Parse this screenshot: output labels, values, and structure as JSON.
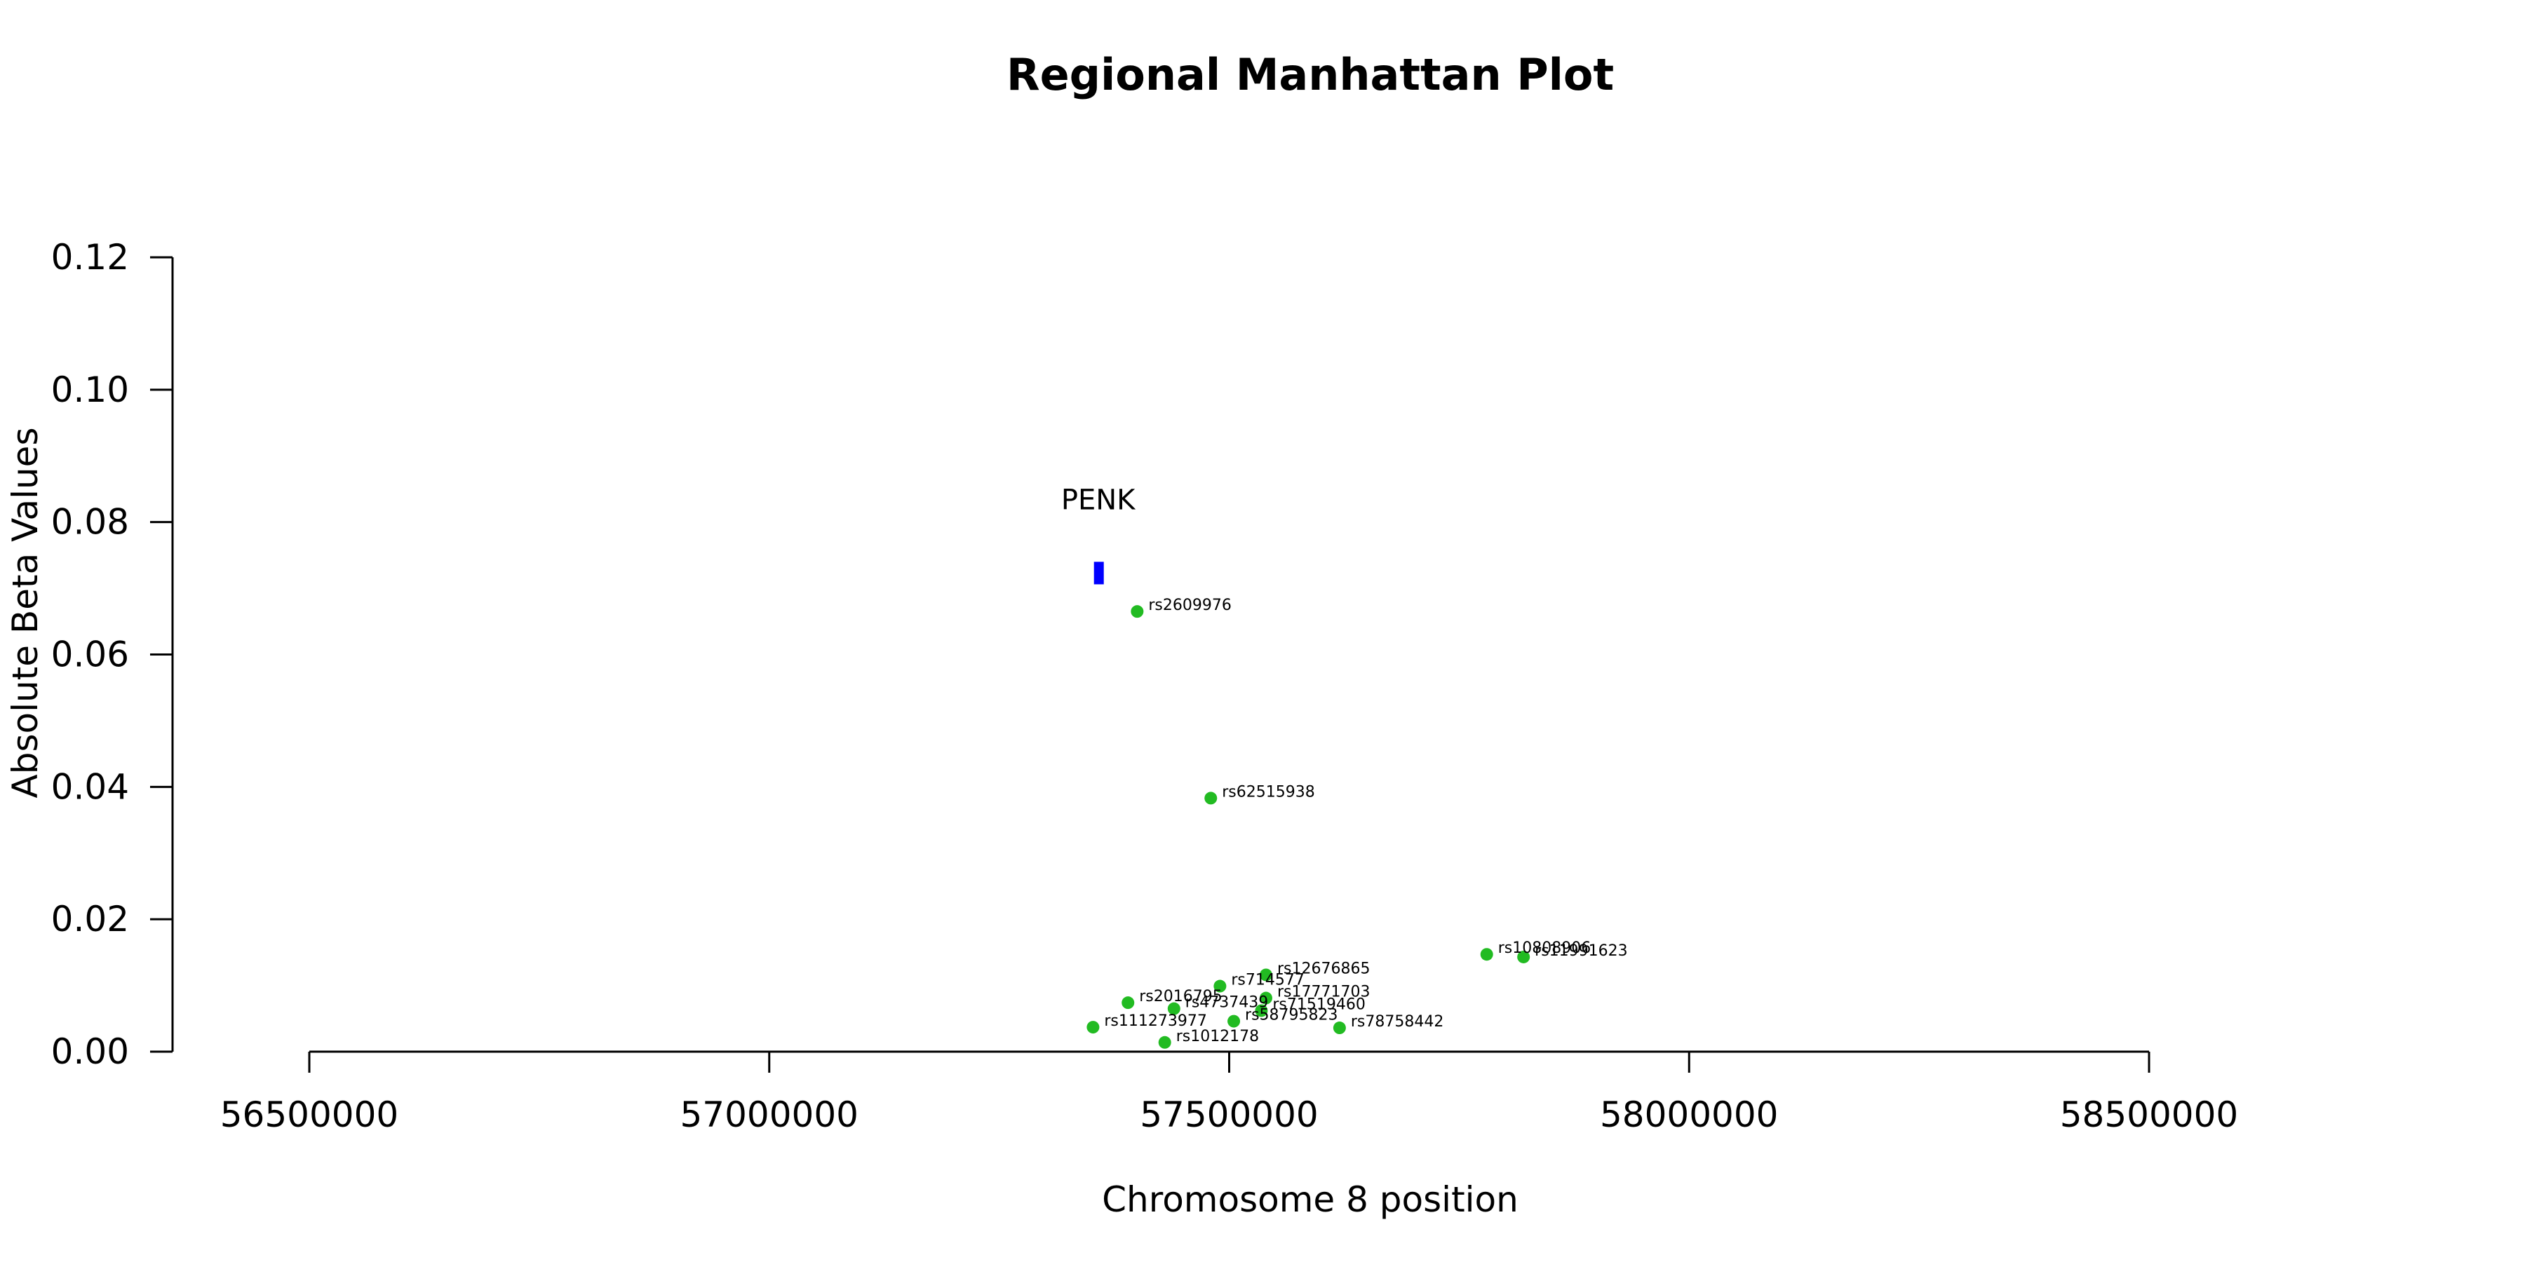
{
  "chart_data": {
    "type": "scatter",
    "title": "Regional Manhattan Plot",
    "xlabel": "Chromosome 8 position",
    "ylabel": "Absolute Beta Values",
    "xlim": [
      56350000,
      58750000
    ],
    "ylim": [
      0,
      0.12
    ],
    "x_ticks": [
      56500000,
      57000000,
      57500000,
      58000000,
      58500000
    ],
    "x_tick_labels": [
      "56500000",
      "57000000",
      "57500000",
      "58000000",
      "58500000"
    ],
    "y_ticks": [
      0,
      0.02,
      0.04,
      0.06,
      0.08,
      0.1,
      0.12
    ],
    "y_tick_labels": [
      "0.00",
      "0.02",
      "0.04",
      "0.06",
      "0.08",
      "0.10",
      "0.12"
    ],
    "grid": false,
    "point_color": "#22bb22",
    "points": [
      {
        "label": "rs2609976",
        "x": 57400000,
        "y": 0.0665
      },
      {
        "label": "rs62515938",
        "x": 57480000,
        "y": 0.0383
      },
      {
        "label": "rs10808906",
        "x": 57780000,
        "y": 0.0147
      },
      {
        "label": "rs11991623",
        "x": 57820000,
        "y": 0.0143
      },
      {
        "label": "rs12676865",
        "x": 57540000,
        "y": 0.0116
      },
      {
        "label": "rs714577",
        "x": 57490000,
        "y": 0.0099
      },
      {
        "label": "rs17771703",
        "x": 57540000,
        "y": 0.0081
      },
      {
        "label": "rs2016795",
        "x": 57390000,
        "y": 0.0074
      },
      {
        "label": "rs71519460",
        "x": 57535000,
        "y": 0.0062
      },
      {
        "label": "rs4737439",
        "x": 57440000,
        "y": 0.0065
      },
      {
        "label": "rs58795823",
        "x": 57505000,
        "y": 0.0046
      },
      {
        "label": "rs78758442",
        "x": 57620000,
        "y": 0.0036
      },
      {
        "label": "rs111273977",
        "x": 57352000,
        "y": 0.0037
      },
      {
        "label": "rs1012178",
        "x": 57430000,
        "y": 0.0014
      }
    ],
    "gene": {
      "name": "PENK",
      "x_start": 57353000,
      "x_end": 57362000,
      "y_low": 0.0706,
      "y_high": 0.074,
      "color": "#0000ff"
    }
  }
}
